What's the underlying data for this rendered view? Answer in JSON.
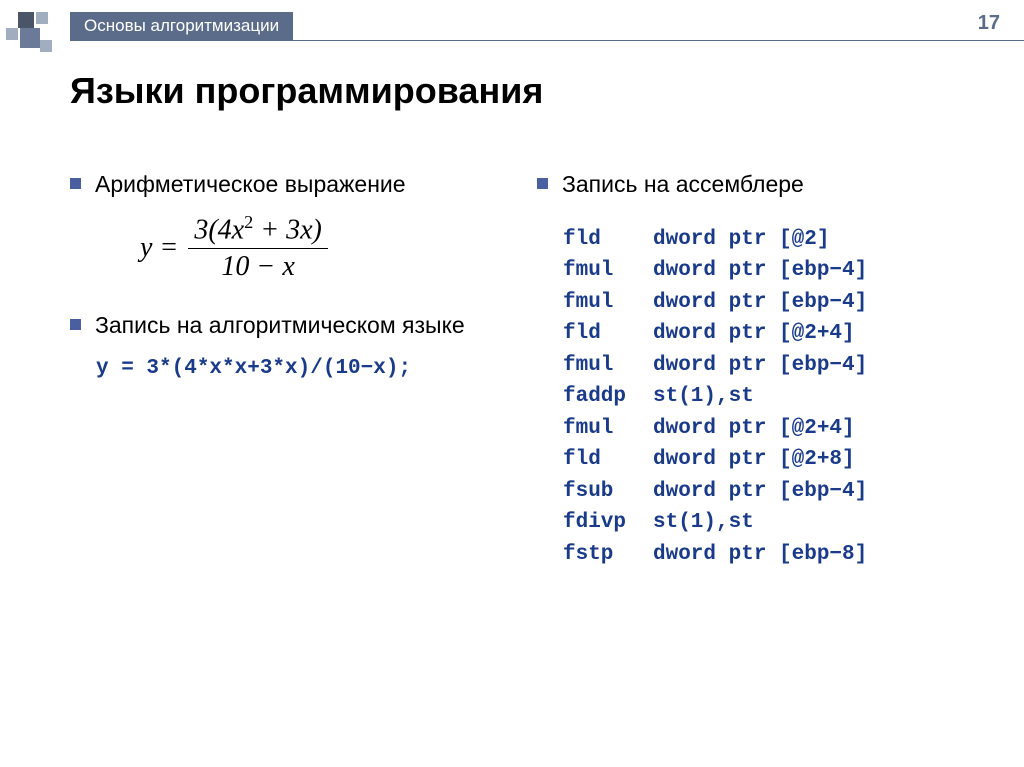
{
  "page_number": "17",
  "breadcrumb": "Основы алгоритмизации",
  "title": "Языки программирования",
  "left": {
    "b1": "Арифметическое выражение",
    "formula_lhs": "y =",
    "formula_num_a": "3(4",
    "formula_num_b": "x",
    "formula_num_sup": "2",
    "formula_num_c": " + 3",
    "formula_num_d": "x",
    "formula_num_e": ")",
    "formula_den_a": "10 − ",
    "formula_den_b": "x",
    "b2": "Запись на алгоритмическом языке",
    "code": "y = 3*(4*x*x+3*x)/(10−x);"
  },
  "right": {
    "b1": "Запись на ассемблере",
    "asm": [
      {
        "op": "fld",
        "arg": "dword ptr [@2]"
      },
      {
        "op": "fmul",
        "arg": "dword ptr [ebp−4]"
      },
      {
        "op": "fmul",
        "arg": "dword ptr [ebp−4]"
      },
      {
        "op": "fld",
        "arg": "dword ptr [@2+4]"
      },
      {
        "op": "fmul",
        "arg": "dword ptr [ebp−4]"
      },
      {
        "op": "faddp",
        "arg": "st(1),st"
      },
      {
        "op": "fmul",
        "arg": "dword ptr [@2+4]"
      },
      {
        "op": "fld",
        "arg": "dword ptr [@2+8]"
      },
      {
        "op": "fsub",
        "arg": "dword ptr [ebp−4]"
      },
      {
        "op": "fdivp",
        "arg": "st(1),st"
      },
      {
        "op": "fstp",
        "arg": "dword ptr [ebp−8]"
      }
    ]
  },
  "colors": {
    "breadcrumb_bg": "#5a6c8a",
    "breadcrumb_fg": "#ffffff",
    "bullet": "#4a5fa0",
    "code": "#1a3a8a",
    "text": "#000000"
  }
}
